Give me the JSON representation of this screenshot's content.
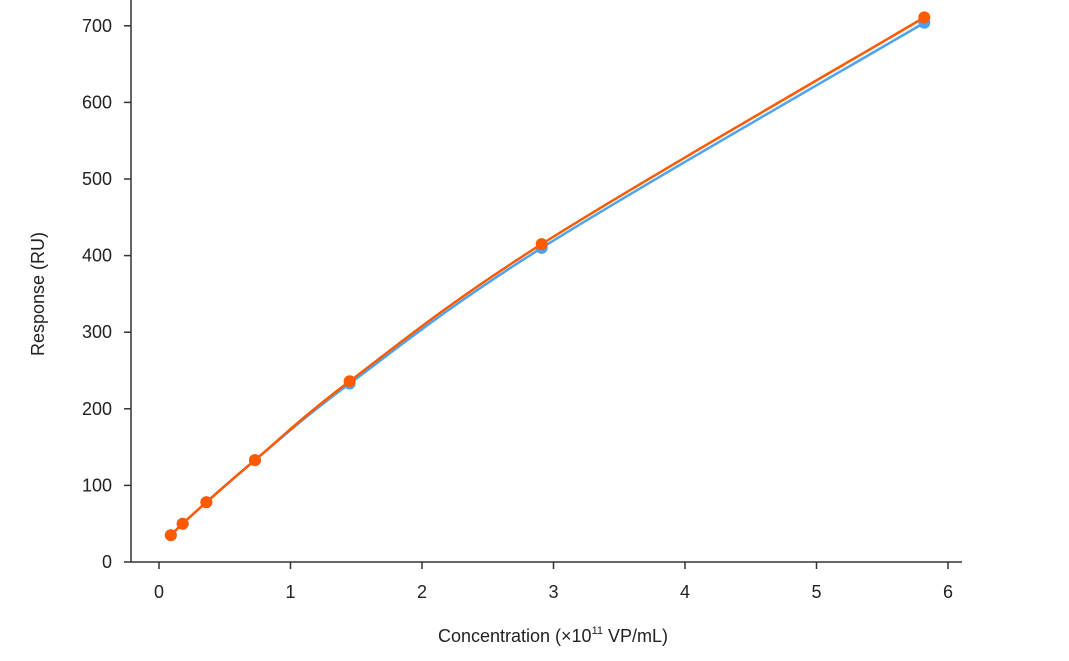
{
  "chart_data": {
    "type": "line",
    "title": "",
    "xlabel": "Concentration (×10",
    "xlabel_sup": "11",
    "xlabel_tail": " VP/mL)",
    "ylabel": "Response (RU)",
    "xlim": [
      -0.2,
      6.1
    ],
    "ylim": [
      0,
      700
    ],
    "xticks": [
      "0",
      "1",
      "2",
      "3",
      "4",
      "5",
      "6"
    ],
    "yticks": [
      "0",
      "100",
      "200",
      "300",
      "400",
      "500",
      "600",
      "700"
    ],
    "grid": false,
    "series": [
      {
        "name": "series-blue",
        "color": "#4da3f0",
        "x": [
          0.09,
          0.18,
          0.36,
          0.73,
          1.45,
          2.91,
          5.82
        ],
        "y": [
          35,
          50,
          78,
          133,
          233,
          410,
          704
        ]
      },
      {
        "name": "series-orange",
        "color": "#ff5a00",
        "x": [
          0.09,
          0.18,
          0.36,
          0.73,
          1.45,
          2.91,
          5.82
        ],
        "y": [
          35,
          50,
          78,
          133,
          236,
          415,
          711
        ]
      }
    ]
  }
}
